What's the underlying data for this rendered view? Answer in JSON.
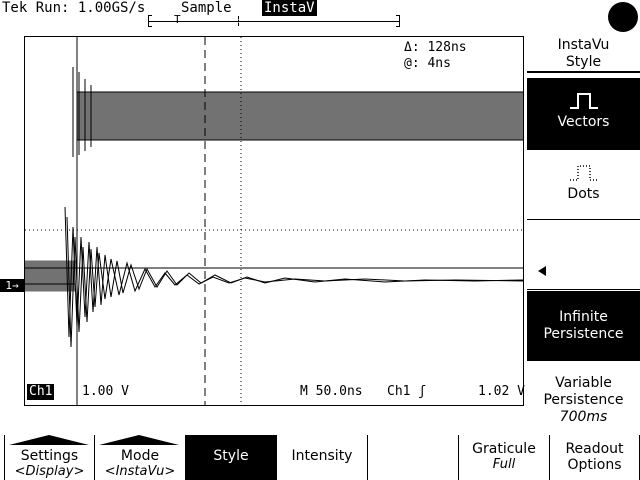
{
  "status": {
    "run_label": "Tek Run: 1.00GS/s",
    "acq_mode": "Sample",
    "instav_badge": "InstaV"
  },
  "readouts": {
    "delta": "Δ: 128ns",
    "at": "@: 4ns"
  },
  "channel": {
    "marker": "1→",
    "label": "Ch1",
    "volts_per_div": "1.00 V",
    "timebase": "M 50.0ns",
    "trigger_source": "Ch1 ʃ",
    "trigger_level": "1.02 V"
  },
  "side_menu": {
    "title_line1": "InstaVu",
    "title_line2": "Style",
    "vectors": "Vectors",
    "dots": "Dots",
    "infinite_line1": "Infinite",
    "infinite_line2": "Persistence",
    "variable_line1": "Variable",
    "variable_line2": "Persistence",
    "variable_value": "700ms"
  },
  "bottom_menu": {
    "settings": "Settings",
    "settings_sub": "<Display>",
    "mode": "Mode",
    "mode_sub": "<InstaVu>",
    "style": "Style",
    "intensity": "Intensity",
    "graticule": "Graticule",
    "graticule_sub": "Full",
    "readout_line1": "Readout",
    "readout_line2": "Options"
  },
  "colors": {
    "foreground": "#000000",
    "background": "#ffffff"
  }
}
